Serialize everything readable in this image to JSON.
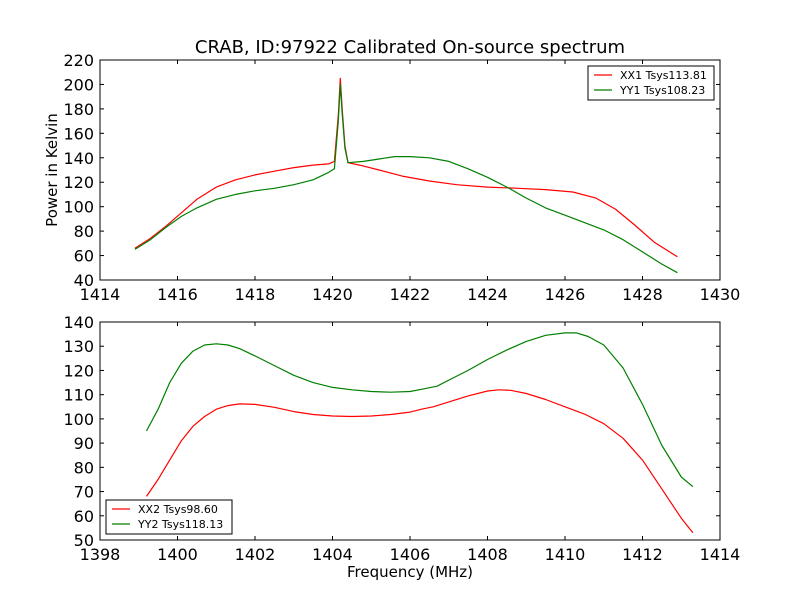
{
  "chart_data": [
    {
      "type": "line",
      "title": "CRAB, ID:97922 Calibrated On-source spectrum",
      "xlabel": "",
      "ylabel": "Power in Kelvin",
      "xlim": [
        1414,
        1430
      ],
      "ylim": [
        40,
        220
      ],
      "xticks": [
        1414,
        1416,
        1418,
        1420,
        1422,
        1424,
        1426,
        1428,
        1430
      ],
      "yticks": [
        40,
        60,
        80,
        100,
        120,
        140,
        160,
        180,
        200,
        220
      ],
      "grid": false,
      "legend_position": "top-right",
      "series": [
        {
          "name": "XX1 Tsys113.81",
          "color": "#ff0000",
          "points": [
            [
              1414.9,
              66
            ],
            [
              1415.3,
              74
            ],
            [
              1415.7,
              84
            ],
            [
              1416.1,
              95
            ],
            [
              1416.5,
              106
            ],
            [
              1417.0,
              116
            ],
            [
              1417.5,
              122
            ],
            [
              1418.0,
              126
            ],
            [
              1418.5,
              129
            ],
            [
              1419.0,
              132
            ],
            [
              1419.5,
              134
            ],
            [
              1419.9,
              135
            ],
            [
              1420.05,
              137
            ],
            [
              1420.15,
              175
            ],
            [
              1420.2,
              205
            ],
            [
              1420.25,
              180
            ],
            [
              1420.32,
              150
            ],
            [
              1420.4,
              136
            ],
            [
              1420.7,
              134
            ],
            [
              1421.2,
              130
            ],
            [
              1421.8,
              125
            ],
            [
              1422.5,
              121
            ],
            [
              1423.2,
              118
            ],
            [
              1424.0,
              116
            ],
            [
              1424.8,
              115
            ],
            [
              1425.5,
              114
            ],
            [
              1426.2,
              112
            ],
            [
              1426.8,
              107
            ],
            [
              1427.3,
              98
            ],
            [
              1427.8,
              85
            ],
            [
              1428.3,
              71
            ],
            [
              1428.9,
              59
            ]
          ]
        },
        {
          "name": "YY1 Tsys108.23",
          "color": "#008000",
          "points": [
            [
              1414.9,
              65
            ],
            [
              1415.3,
              73
            ],
            [
              1415.7,
              83
            ],
            [
              1416.1,
              92
            ],
            [
              1416.5,
              99
            ],
            [
              1417.0,
              106
            ],
            [
              1417.5,
              110
            ],
            [
              1418.0,
              113
            ],
            [
              1418.5,
              115
            ],
            [
              1419.0,
              118
            ],
            [
              1419.5,
              122
            ],
            [
              1419.9,
              128
            ],
            [
              1420.05,
              131
            ],
            [
              1420.15,
              170
            ],
            [
              1420.2,
              200
            ],
            [
              1420.25,
              176
            ],
            [
              1420.32,
              148
            ],
            [
              1420.4,
              136
            ],
            [
              1420.8,
              137
            ],
            [
              1421.2,
              139
            ],
            [
              1421.6,
              141
            ],
            [
              1422.0,
              141
            ],
            [
              1422.5,
              140
            ],
            [
              1423.0,
              137
            ],
            [
              1423.5,
              131
            ],
            [
              1424.0,
              124
            ],
            [
              1424.5,
              116
            ],
            [
              1425.0,
              107
            ],
            [
              1425.5,
              99
            ],
            [
              1426.0,
              93
            ],
            [
              1426.5,
              87
            ],
            [
              1427.0,
              81
            ],
            [
              1427.5,
              73
            ],
            [
              1428.0,
              63
            ],
            [
              1428.5,
              53
            ],
            [
              1428.9,
              46
            ]
          ]
        }
      ]
    },
    {
      "type": "line",
      "title": "",
      "xlabel": "Frequency (MHz)",
      "ylabel": "",
      "xlim": [
        1398,
        1414
      ],
      "ylim": [
        50,
        140
      ],
      "xticks": [
        1398,
        1400,
        1402,
        1404,
        1406,
        1408,
        1410,
        1412,
        1414
      ],
      "yticks": [
        50,
        60,
        70,
        80,
        90,
        100,
        110,
        120,
        130,
        140
      ],
      "grid": false,
      "legend_position": "bottom-left",
      "series": [
        {
          "name": "XX2 Tsys98.60",
          "color": "#ff0000",
          "points": [
            [
              1399.2,
              68
            ],
            [
              1399.5,
              75
            ],
            [
              1399.8,
              83
            ],
            [
              1400.1,
              91
            ],
            [
              1400.4,
              97
            ],
            [
              1400.7,
              101
            ],
            [
              1401.0,
              104
            ],
            [
              1401.3,
              105.5
            ],
            [
              1401.6,
              106.2
            ],
            [
              1402.0,
              106
            ],
            [
              1402.5,
              104.8
            ],
            [
              1403.0,
              103
            ],
            [
              1403.5,
              101.8
            ],
            [
              1404.0,
              101.2
            ],
            [
              1404.5,
              101
            ],
            [
              1405.0,
              101.2
            ],
            [
              1405.5,
              101.8
            ],
            [
              1406.0,
              102.8
            ],
            [
              1406.3,
              104
            ],
            [
              1406.6,
              105
            ],
            [
              1407.0,
              107
            ],
            [
              1407.5,
              109.5
            ],
            [
              1408.0,
              111.5
            ],
            [
              1408.3,
              112
            ],
            [
              1408.6,
              111.8
            ],
            [
              1409.0,
              110.5
            ],
            [
              1409.5,
              108
            ],
            [
              1410.0,
              105
            ],
            [
              1410.5,
              102
            ],
            [
              1411.0,
              98
            ],
            [
              1411.5,
              92
            ],
            [
              1412.0,
              83
            ],
            [
              1412.5,
              71
            ],
            [
              1413.0,
              59
            ],
            [
              1413.3,
              53
            ]
          ]
        },
        {
          "name": "YY2 Tsys118.13",
          "color": "#008000",
          "points": [
            [
              1399.2,
              95
            ],
            [
              1399.5,
              104
            ],
            [
              1399.8,
              115
            ],
            [
              1400.1,
              123
            ],
            [
              1400.4,
              128
            ],
            [
              1400.7,
              130.5
            ],
            [
              1401.0,
              131
            ],
            [
              1401.3,
              130.5
            ],
            [
              1401.6,
              129
            ],
            [
              1402.0,
              126
            ],
            [
              1402.5,
              122
            ],
            [
              1403.0,
              118
            ],
            [
              1403.5,
              115
            ],
            [
              1404.0,
              113
            ],
            [
              1404.5,
              112
            ],
            [
              1405.0,
              111.3
            ],
            [
              1405.5,
              111
            ],
            [
              1406.0,
              111.3
            ],
            [
              1406.3,
              112.2
            ],
            [
              1406.7,
              113.5
            ],
            [
              1407.0,
              116
            ],
            [
              1407.5,
              120
            ],
            [
              1408.0,
              124.5
            ],
            [
              1408.5,
              128.5
            ],
            [
              1409.0,
              132
            ],
            [
              1409.5,
              134.5
            ],
            [
              1410.0,
              135.5
            ],
            [
              1410.3,
              135.5
            ],
            [
              1410.6,
              134
            ],
            [
              1411.0,
              130.5
            ],
            [
              1411.5,
              121
            ],
            [
              1412.0,
              106
            ],
            [
              1412.5,
              89
            ],
            [
              1413.0,
              76
            ],
            [
              1413.3,
              72
            ]
          ]
        }
      ]
    }
  ]
}
